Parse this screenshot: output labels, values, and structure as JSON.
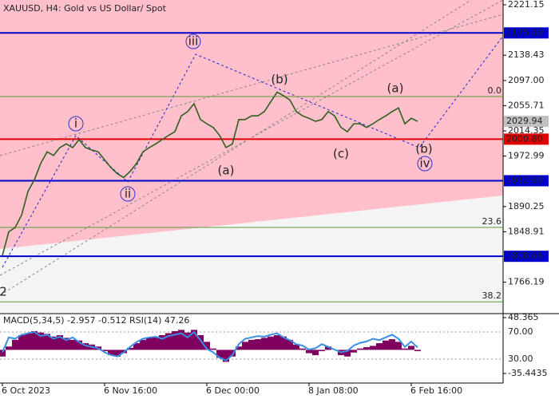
{
  "chart_data": [
    {
      "type": "price",
      "title": "XAUUSD, H4:  Gold vs US Dollar/ Spot",
      "categories": [
        "6 Oct 2023",
        null,
        null,
        null,
        null,
        null,
        null,
        null,
        null,
        null,
        null,
        null,
        null,
        null,
        null,
        null,
        "6 Nov 16:00",
        null,
        null,
        null,
        null,
        null,
        null,
        null,
        null,
        null,
        null,
        null,
        null,
        null,
        null,
        null,
        "6 Dec 00:00",
        null,
        null,
        null,
        null,
        null,
        null,
        null,
        null,
        null,
        null,
        null,
        null,
        null,
        null,
        null,
        "8 Jan 08:00",
        null,
        null,
        null,
        null,
        null,
        null,
        null,
        null,
        null,
        null,
        null,
        null,
        null,
        null,
        null,
        "6 Feb 16:00",
        null
      ],
      "values": [
        1810,
        1849,
        1856,
        1876,
        1915,
        1934,
        1961,
        1980,
        1974,
        1987,
        1993,
        1987,
        2000,
        1987,
        1983,
        1980,
        1967,
        1954,
        1944,
        1938,
        1948,
        1961,
        1980,
        1987,
        1993,
        2000,
        2007,
        2013,
        2039,
        2046,
        2059,
        2033,
        2026,
        2020,
        2007,
        1987,
        1993,
        2033,
        2033,
        2039,
        2039,
        2046,
        2062,
        2078,
        2072,
        2065,
        2046,
        2039,
        2035,
        2030,
        2033,
        2046,
        2039,
        2020,
        2013,
        2026,
        2026,
        2020,
        2026,
        2033,
        2039,
        2046,
        2052,
        2026,
        2035,
        2030
      ],
      "color": "#2f5f1f",
      "ylim": [
        1716,
        2229
      ],
      "yticks": [
        2221.15,
        2138.43,
        {
          "value": 2097,
          "label": "2097.00"
        },
        2055.71,
        2014.35,
        1972.99,
        1890.25,
        1848.91,
        1766.19
      ],
      "levels": [
        {
          "value": 2175,
          "label": "2175.00",
          "color": "#0000cc"
        },
        {
          "value": 2000.8,
          "label": "2000.80",
          "color": "#e00000"
        },
        {
          "value": 1932.6,
          "label": "1932.60",
          "color": "#0000cc"
        },
        {
          "value": 1808.68,
          "label": "1808.68",
          "color": "#0000cc"
        }
      ],
      "current_price": {
        "value": 2029.94,
        "label": "2029.94",
        "color": "#c0c0c0"
      },
      "fib_levels": [
        {
          "value": 2070.6,
          "label": "0.0"
        },
        {
          "value": 1856,
          "label": "23.6"
        },
        {
          "value": 1734,
          "label": "38.2"
        }
      ],
      "fib_color": "#5a9a3a",
      "wave_labels": [
        "i",
        "ii",
        "iii",
        "(a)",
        "(b)",
        "(c)",
        "(a)",
        "(b)",
        "iv",
        "2"
      ]
    },
    {
      "type": "indicator",
      "title": "MACD(5,34,5) -2.957 -0.512 RSI(14) 47.26",
      "values": [
        -10,
        5,
        15,
        22,
        25,
        28,
        26,
        24,
        20,
        22,
        18,
        15,
        14,
        10,
        8,
        5,
        -2,
        -8,
        -10,
        -5,
        3,
        10,
        15,
        18,
        20,
        22,
        25,
        28,
        30,
        26,
        30,
        22,
        12,
        2,
        -12,
        -18,
        -10,
        5,
        12,
        15,
        16,
        18,
        20,
        22,
        20,
        15,
        8,
        2,
        -5,
        -8,
        -2,
        5,
        0,
        -8,
        -10,
        -4,
        2,
        4,
        6,
        10,
        14,
        16,
        12,
        2,
        6,
        -2
      ],
      "color": "#800060",
      "ylim": [
        -47.4,
        51.96
      ],
      "yticks": [
        48.365,
        -35.4435
      ],
      "rsi_values": [
        40,
        62,
        60,
        66,
        68,
        70,
        64,
        66,
        60,
        63,
        58,
        62,
        55,
        50,
        48,
        46,
        40,
        36,
        34,
        40,
        48,
        55,
        60,
        62,
        63,
        60,
        64,
        66,
        68,
        62,
        70,
        58,
        45,
        40,
        32,
        28,
        36,
        52,
        60,
        62,
        64,
        63,
        66,
        68,
        62,
        58,
        52,
        50,
        44,
        46,
        52,
        48,
        44,
        40,
        42,
        50,
        54,
        56,
        60,
        58,
        62,
        66,
        60,
        48,
        56,
        47.26
      ],
      "rsi_color": "#3a8ee6",
      "y2lim": [
        -2.9,
        94.7
      ],
      "y2ticks": [
        {
          "value": 70,
          "label": "70.00"
        },
        {
          "value": 30,
          "label": "30.00"
        }
      ]
    }
  ]
}
